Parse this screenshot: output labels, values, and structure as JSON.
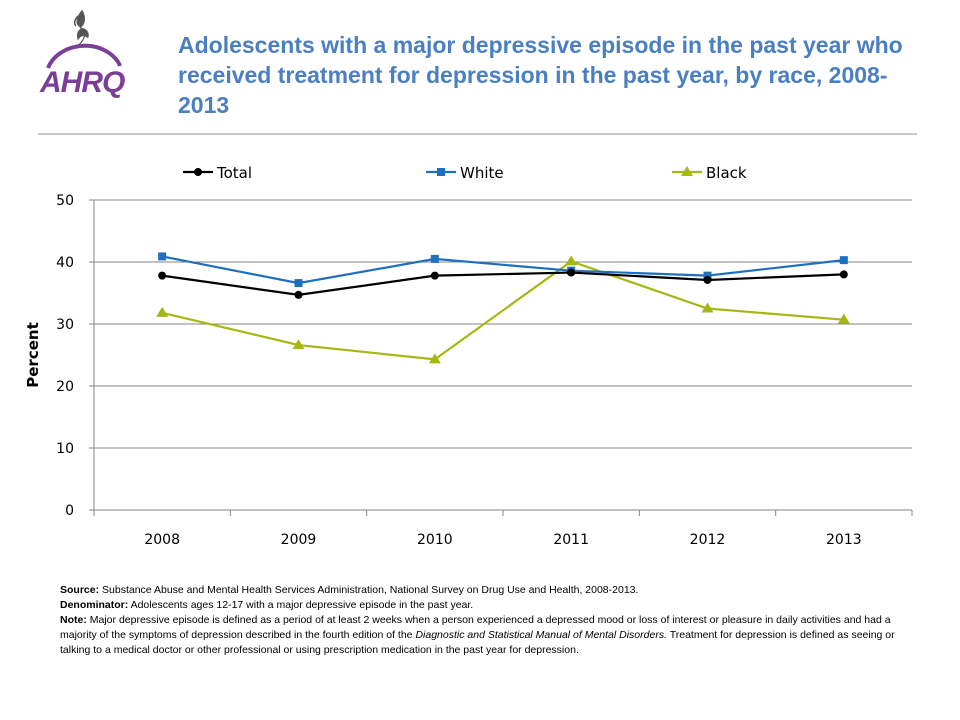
{
  "page": {
    "title": "Adolescents with a major depressive episode in the past year who received treatment for depression in the past year, by race, 2008-2013",
    "logo_text": "AHRQ",
    "colors": {
      "title": "#4a7fc1",
      "logo_purple": "#7b3f98",
      "rule": "#c8c8c8"
    }
  },
  "chart_data": {
    "type": "line",
    "categories": [
      "2008",
      "2009",
      "2010",
      "2011",
      "2012",
      "2013"
    ],
    "series": [
      {
        "name": "Total",
        "values": [
          37.8,
          34.7,
          37.8,
          38.3,
          37.1,
          38.0
        ],
        "color": "#000000",
        "marker": "circle"
      },
      {
        "name": "White",
        "values": [
          40.9,
          36.6,
          40.5,
          38.6,
          37.8,
          40.3
        ],
        "color": "#1f6fbf",
        "marker": "square"
      },
      {
        "name": "Black",
        "values": [
          31.8,
          26.6,
          24.3,
          40.1,
          32.5,
          30.7
        ],
        "color": "#a5b713",
        "marker": "triangle"
      }
    ],
    "xlabel": "",
    "ylabel": "Percent",
    "ylim": [
      0,
      50
    ],
    "yticks": [
      "0",
      "10",
      "20",
      "30",
      "40",
      "50"
    ],
    "grid": true,
    "legend_position": "top"
  },
  "notes": {
    "source_label": "Source:",
    "source_text": "Substance Abuse and Mental Health Services Administration, National Survey on Drug Use and Health, 2008-2013.",
    "denominator_label": "Denominator:",
    "denominator_text": "Adolescents ages 12-17 with a major depressive episode in the past year.",
    "note_label": "Note:",
    "note_text_1": "Major depressive episode is defined as a period of at least 2 weeks when a person experienced a depressed mood or loss of interest or pleasure in daily activities and had a majority of the symptoms of depression described in the fourth edition of the",
    "note_italic": "Diagnostic and Statistical Manual of Mental Disorders.",
    "note_text_2": "Treatment for depression is defined as seeing or talking to a medical doctor or other professional or using prescription medication in the past year for depression."
  }
}
